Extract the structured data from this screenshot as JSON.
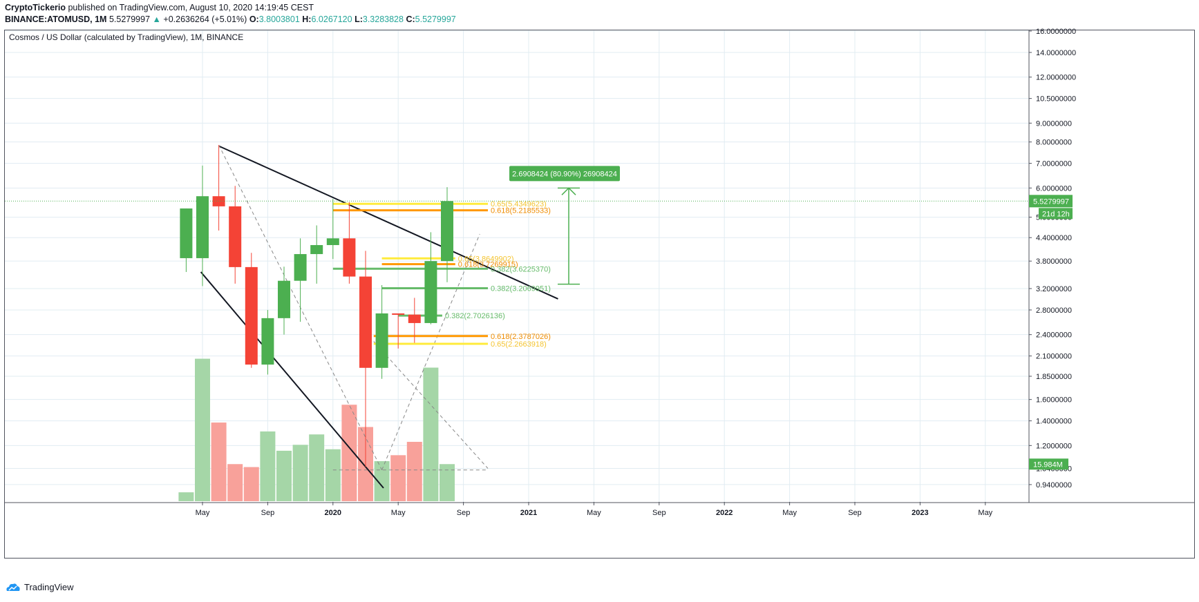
{
  "header": {
    "author": "CryptoTickerio",
    "published_text": "published on TradingView.com, August 10, 2020 14:19:45 CEST",
    "symbol_interval": "BINANCE:ATOMUSD, 1M",
    "last_price": "5.5279997",
    "change_arrow": "▲",
    "change_text": "+0.2636264 (+5.01%)",
    "o_label": "O:",
    "o_value": "3.8003801",
    "h_label": "H:",
    "h_value": "6.0267120",
    "l_label": "L:",
    "l_value": "3.3283828",
    "c_label": "C:",
    "c_value": "5.5279997"
  },
  "chart_title": "Cosmos / US Dollar (calculated by TradingView), 1M, BINANCE",
  "footer": {
    "brand": "TradingView"
  },
  "colors": {
    "up": "#4caf50",
    "down": "#f44336",
    "vol_up": "#a5d6a7",
    "vol_down": "#f8a19a",
    "grid": "#e1ecf2",
    "fib_yellow": "#ffeb3b",
    "fib_orange": "#ff9800",
    "fib_green": "#66bb6a",
    "price_line": "#4caf50"
  },
  "chart_data": {
    "type": "candlestick",
    "symbol": "BINANCE:ATOMUSD",
    "interval": "1M",
    "y_scale": "log",
    "ylim": [
      0.84,
      16.0
    ],
    "y_ticks": [
      "16.0000000",
      "14.0000000",
      "12.0000000",
      "10.5000000",
      "9.0000000",
      "8.0000000",
      "7.0000000",
      "6.0000000",
      "5.0000000",
      "4.4000000",
      "3.8000000",
      "3.2000000",
      "2.8000000",
      "2.4000000",
      "2.1000000",
      "1.8500000",
      "1.6000000",
      "1.4000000",
      "1.2000000",
      "1.0400000",
      "0.9400000"
    ],
    "x_ticks": [
      "May",
      "Sep",
      "2020",
      "May",
      "Sep",
      "2021",
      "May",
      "Sep",
      "2022",
      "May",
      "Sep",
      "2023",
      "May"
    ],
    "candles": [
      {
        "date": "2019-04",
        "o": 3.87,
        "h": 5.28,
        "l": 3.55,
        "c": 5.28,
        "vol": 0.06
      },
      {
        "date": "2019-05",
        "o": 3.87,
        "h": 6.9,
        "l": 3.25,
        "c": 5.7,
        "vol": 0.96
      },
      {
        "date": "2019-06",
        "o": 5.7,
        "h": 7.85,
        "l": 4.6,
        "c": 5.35,
        "vol": 0.53
      },
      {
        "date": "2019-07",
        "o": 5.35,
        "h": 6.08,
        "l": 3.3,
        "c": 3.66,
        "vol": 0.25
      },
      {
        "date": "2019-08",
        "o": 3.66,
        "h": 4.0,
        "l": 1.95,
        "c": 1.99,
        "vol": 0.23
      },
      {
        "date": "2019-09",
        "o": 1.99,
        "h": 2.8,
        "l": 1.87,
        "c": 2.66,
        "vol": 0.47
      },
      {
        "date": "2019-10",
        "o": 2.66,
        "h": 3.67,
        "l": 2.4,
        "c": 3.36,
        "vol": 0.34
      },
      {
        "date": "2019-11",
        "o": 3.36,
        "h": 4.38,
        "l": 2.6,
        "c": 3.97,
        "vol": 0.38
      },
      {
        "date": "2019-12",
        "o": 3.97,
        "h": 4.75,
        "l": 3.3,
        "c": 4.2,
        "vol": 0.45
      },
      {
        "date": "2020-01",
        "o": 4.2,
        "h": 5.6,
        "l": 3.85,
        "c": 4.38,
        "vol": 0.35
      },
      {
        "date": "2020-02",
        "o": 4.38,
        "h": 5.49,
        "l": 3.3,
        "c": 3.45,
        "vol": 0.65
      },
      {
        "date": "2020-03",
        "o": 3.45,
        "h": 4.05,
        "l": 1.05,
        "c": 1.95,
        "vol": 0.5
      },
      {
        "date": "2020-04",
        "o": 1.95,
        "h": 3.27,
        "l": 1.82,
        "c": 2.74,
        "vol": 0.27
      },
      {
        "date": "2020-05",
        "o": 2.74,
        "h": 2.74,
        "l": 2.2,
        "c": 2.72,
        "vol": 0.31
      },
      {
        "date": "2020-06",
        "o": 2.72,
        "h": 3.02,
        "l": 2.28,
        "c": 2.58,
        "vol": 0.4
      },
      {
        "date": "2020-07",
        "o": 2.58,
        "h": 4.55,
        "l": 2.56,
        "c": 3.8,
        "vol": 0.9
      },
      {
        "date": "2020-08",
        "o": 3.8,
        "h": 6.03,
        "l": 3.33,
        "c": 5.53,
        "vol": 0.25
      }
    ],
    "volume_label": "15.984M",
    "last_price_label": "5.5279997",
    "countdown_label": "21d 12h",
    "measure": {
      "from": 3.29,
      "to": 6.0,
      "label": "2.6908424 (80.90%) 26908424"
    },
    "fib_levels": [
      {
        "label": "0.65(5.4349623)",
        "price": 5.435,
        "color": "yellow"
      },
      {
        "label": "0.618(5.2185533)",
        "price": 5.2185533,
        "color": "orange"
      },
      {
        "label": "0.65(3.8649902)",
        "price": 3.865,
        "color": "yellow"
      },
      {
        "label": "0.618(3.7269915)",
        "price": 3.727,
        "color": "orange"
      },
      {
        "label": "0.382(3.6225370)",
        "price": 3.622537,
        "color": "green"
      },
      {
        "label": "0.382(3.2069951)",
        "price": 3.207,
        "color": "green"
      },
      {
        "label": "0.382(2.7026136)",
        "price": 2.7026136,
        "color": "green"
      },
      {
        "label": "0.618(2.3787026)",
        "price": 2.3787026,
        "color": "orange"
      },
      {
        "label": "0.65(2.2663918)",
        "price": 2.2663918,
        "color": "yellow"
      }
    ]
  }
}
